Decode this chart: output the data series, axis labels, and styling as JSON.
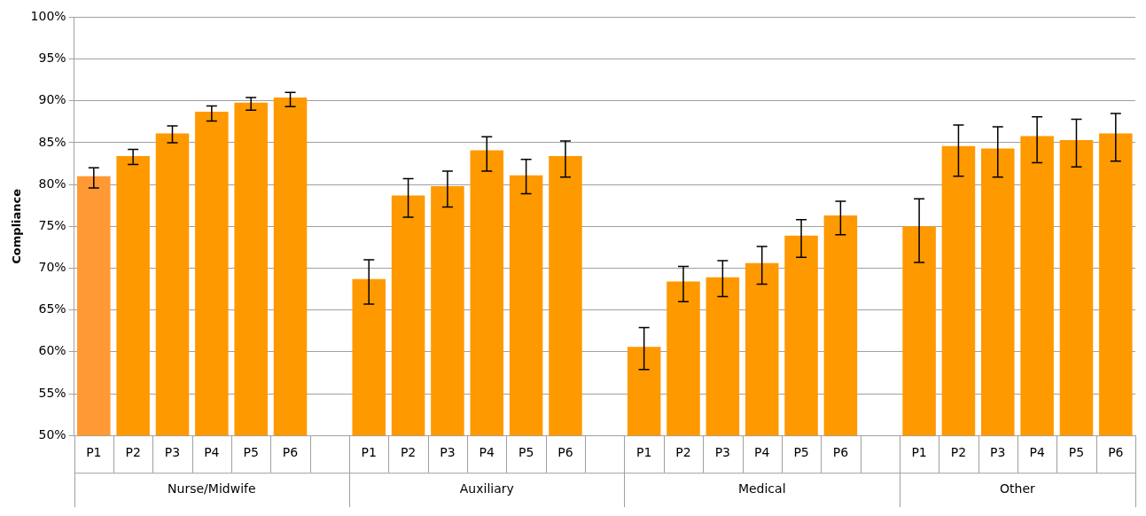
{
  "chart_data": {
    "type": "bar",
    "ylabel": "Compliance",
    "categories": [
      "P1",
      "P2",
      "P3",
      "P4",
      "P5",
      "P6",
      null,
      "P1",
      "P2",
      "P3",
      "P4",
      "P5",
      "P6",
      null,
      "P1",
      "P2",
      "P3",
      "P4",
      "P5",
      "P6",
      null,
      "P1",
      "P2",
      "P3",
      "P4",
      "P5",
      "P6"
    ],
    "values": [
      81.0,
      83.4,
      86.1,
      88.7,
      89.8,
      90.4,
      null,
      68.7,
      78.7,
      79.8,
      84.1,
      81.1,
      83.4,
      null,
      60.6,
      68.4,
      68.9,
      70.6,
      73.9,
      76.3,
      null,
      75.0,
      84.6,
      84.3,
      85.8,
      85.3,
      86.1
    ],
    "errors": [
      [
        79.6,
        82.0
      ],
      [
        82.4,
        84.2
      ],
      [
        85.0,
        87.0
      ],
      [
        87.6,
        89.4
      ],
      [
        88.9,
        90.4
      ],
      [
        89.3,
        91.0
      ],
      null,
      [
        65.7,
        71.0
      ],
      [
        76.1,
        80.7
      ],
      [
        77.3,
        81.6
      ],
      [
        81.6,
        85.7
      ],
      [
        78.9,
        83.0
      ],
      [
        80.9,
        85.2
      ],
      null,
      [
        57.9,
        62.9
      ],
      [
        66.0,
        70.2
      ],
      [
        66.6,
        70.9
      ],
      [
        68.1,
        72.6
      ],
      [
        71.3,
        75.8
      ],
      [
        74.0,
        78.0
      ],
      null,
      [
        70.7,
        78.3
      ],
      [
        81.0,
        87.1
      ],
      [
        80.9,
        86.9
      ],
      [
        82.6,
        88.1
      ],
      [
        82.1,
        87.8
      ],
      [
        82.8,
        88.5
      ]
    ],
    "colors": [
      "#ff9933",
      "#ff9900",
      "#ff9900",
      "#ff9900",
      "#ff9900",
      "#ff9900",
      "#ff9900",
      "#ff9900",
      "#ff9900",
      "#ff9900",
      "#ff9900",
      "#ff9900",
      "#ff9900",
      "#ff9900",
      "#ff9900",
      "#ff9900",
      "#ff9900",
      "#ff9900",
      "#ff9900",
      "#ff9900",
      "#ff9900",
      "#ff9900",
      "#ff9900",
      "#ff9900",
      "#ff9900",
      "#ff9900",
      "#ff9900"
    ],
    "annotations": [
      "Nurse/Midwife",
      "Auxiliary",
      "Medical",
      "Other"
    ],
    "ylim": [
      50,
      100
    ],
    "yticks": [
      {
        "value": 50,
        "label": "50%"
      },
      {
        "value": 55,
        "label": "55%"
      },
      {
        "value": 60,
        "label": "60%"
      },
      {
        "value": 65,
        "label": "65%"
      },
      {
        "value": 70,
        "label": "70%"
      },
      {
        "value": 75,
        "label": "75%"
      },
      {
        "value": 80,
        "label": "80%"
      },
      {
        "value": 85,
        "label": "85%"
      },
      {
        "value": 90,
        "label": "90%"
      },
      {
        "value": 95,
        "label": "95%"
      },
      {
        "value": 100,
        "label": "100%"
      }
    ],
    "grid": "y",
    "legend": false
  }
}
